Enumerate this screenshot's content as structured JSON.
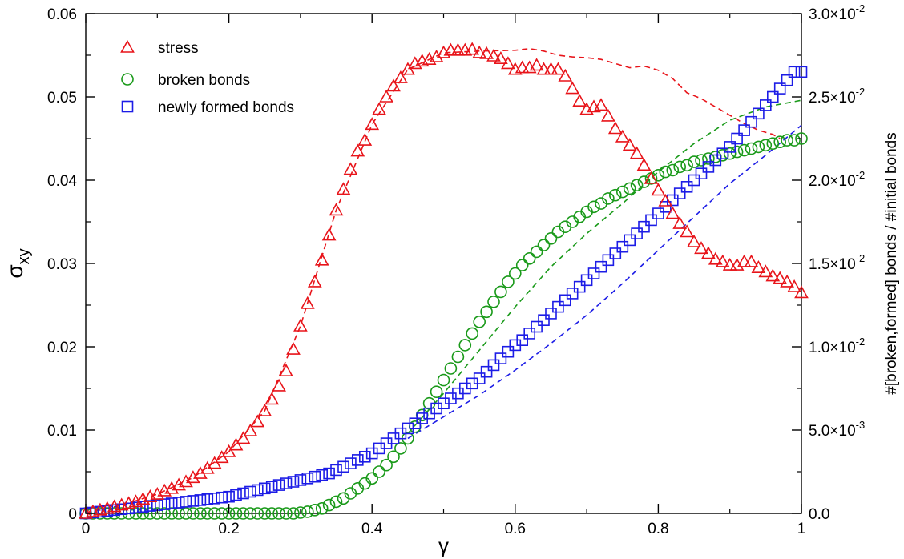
{
  "chart_data": {
    "type": "scatter",
    "x_axis": {
      "label": "γ",
      "range": [
        0,
        1
      ],
      "ticks": [
        0,
        0.2,
        0.4,
        0.6,
        0.8,
        1
      ],
      "tick_labels": [
        "0",
        "0.2",
        "0.4",
        "0.6",
        "0.8",
        "1"
      ]
    },
    "y_left": {
      "label_main": "σ",
      "label_sub": "xy",
      "range": [
        0,
        0.06
      ],
      "ticks": [
        0,
        0.01,
        0.02,
        0.03,
        0.04,
        0.05,
        0.06
      ],
      "tick_labels": [
        "0",
        "0.01",
        "0.02",
        "0.03",
        "0.04",
        "0.05",
        "0.06"
      ]
    },
    "y_right": {
      "label": "#[broken,formed] bonds / #initial bonds",
      "range": [
        0,
        0.03
      ],
      "ticks": [
        0,
        0.005,
        0.01,
        0.015,
        0.02,
        0.025,
        0.03
      ],
      "tick_labels": [
        {
          "mant": "0.0",
          "exp": ""
        },
        {
          "mant": "5.0×10",
          "exp": "-3"
        },
        {
          "mant": "1.0×10",
          "exp": "-2"
        },
        {
          "mant": "1.5×10",
          "exp": "-2"
        },
        {
          "mant": "2.0×10",
          "exp": "-2"
        },
        {
          "mant": "2.5×10",
          "exp": "-2"
        },
        {
          "mant": "3.0×10",
          "exp": "-2"
        }
      ]
    },
    "grid": false,
    "legend_position": "top-left",
    "series": [
      {
        "name": "stress",
        "axis": "left",
        "marker": "triangle",
        "color": "#e8141a",
        "x": [
          0,
          0.01,
          0.02,
          0.03,
          0.04,
          0.05,
          0.06,
          0.07,
          0.08,
          0.09,
          0.1,
          0.11,
          0.12,
          0.13,
          0.14,
          0.15,
          0.16,
          0.17,
          0.18,
          0.19,
          0.2,
          0.21,
          0.22,
          0.23,
          0.24,
          0.25,
          0.26,
          0.27,
          0.28,
          0.29,
          0.3,
          0.31,
          0.32,
          0.33,
          0.34,
          0.35,
          0.36,
          0.37,
          0.38,
          0.39,
          0.4,
          0.41,
          0.42,
          0.43,
          0.44,
          0.45,
          0.46,
          0.47,
          0.48,
          0.49,
          0.5,
          0.51,
          0.52,
          0.53,
          0.54,
          0.55,
          0.56,
          0.57,
          0.58,
          0.59,
          0.6,
          0.61,
          0.62,
          0.63,
          0.64,
          0.65,
          0.66,
          0.67,
          0.68,
          0.69,
          0.7,
          0.71,
          0.72,
          0.73,
          0.74,
          0.75,
          0.76,
          0.77,
          0.78,
          0.79,
          0.8,
          0.81,
          0.82,
          0.83,
          0.84,
          0.85,
          0.86,
          0.87,
          0.88,
          0.89,
          0.9,
          0.91,
          0.92,
          0.93,
          0.94,
          0.95,
          0.96,
          0.97,
          0.98,
          0.99,
          1.0
        ],
        "y": [
          0,
          0.0002,
          0.0004,
          0.0006,
          0.0008,
          0.001,
          0.0012,
          0.0014,
          0.0017,
          0.002,
          0.0023,
          0.0027,
          0.003,
          0.0034,
          0.0038,
          0.0043,
          0.0048,
          0.0054,
          0.006,
          0.0067,
          0.0074,
          0.0082,
          0.009,
          0.0099,
          0.011,
          0.0123,
          0.0137,
          0.0153,
          0.0171,
          0.0197,
          0.0225,
          0.0252,
          0.0278,
          0.0304,
          0.0334,
          0.0364,
          0.0389,
          0.0413,
          0.0435,
          0.0448,
          0.0467,
          0.0485,
          0.05,
          0.0513,
          0.0523,
          0.0533,
          0.054,
          0.0543,
          0.0545,
          0.0548,
          0.0553,
          0.0556,
          0.0556,
          0.0556,
          0.0557,
          0.0553,
          0.0552,
          0.0549,
          0.0546,
          0.054,
          0.0533,
          0.0535,
          0.0535,
          0.0538,
          0.0533,
          0.0533,
          0.0533,
          0.0525,
          0.051,
          0.0495,
          0.0485,
          0.0488,
          0.049,
          0.0477,
          0.0462,
          0.0452,
          0.0442,
          0.0432,
          0.0418,
          0.0402,
          0.0388,
          0.0375,
          0.036,
          0.0348,
          0.0338,
          0.0326,
          0.0318,
          0.0312,
          0.0305,
          0.0302,
          0.0298,
          0.0298,
          0.0302,
          0.0302,
          0.0295,
          0.029,
          0.0285,
          0.0282,
          0.0278,
          0.0272,
          0.0265
        ]
      },
      {
        "name": "broken bonds",
        "axis": "right",
        "marker": "circle",
        "color": "#1a9a1a",
        "x": [
          0,
          0.01,
          0.02,
          0.03,
          0.04,
          0.05,
          0.06,
          0.07,
          0.08,
          0.09,
          0.1,
          0.11,
          0.12,
          0.13,
          0.14,
          0.15,
          0.16,
          0.17,
          0.18,
          0.19,
          0.2,
          0.21,
          0.22,
          0.23,
          0.24,
          0.25,
          0.26,
          0.27,
          0.28,
          0.29,
          0.3,
          0.31,
          0.32,
          0.33,
          0.34,
          0.35,
          0.36,
          0.37,
          0.38,
          0.39,
          0.4,
          0.41,
          0.42,
          0.43,
          0.44,
          0.45,
          0.46,
          0.47,
          0.48,
          0.49,
          0.5,
          0.51,
          0.52,
          0.53,
          0.54,
          0.55,
          0.56,
          0.57,
          0.58,
          0.59,
          0.6,
          0.61,
          0.62,
          0.63,
          0.64,
          0.65,
          0.66,
          0.67,
          0.68,
          0.69,
          0.7,
          0.71,
          0.72,
          0.73,
          0.74,
          0.75,
          0.76,
          0.77,
          0.78,
          0.79,
          0.8,
          0.81,
          0.82,
          0.83,
          0.84,
          0.85,
          0.86,
          0.87,
          0.88,
          0.89,
          0.9,
          0.91,
          0.92,
          0.93,
          0.94,
          0.95,
          0.96,
          0.97,
          0.98,
          0.99,
          1.0
        ],
        "y": [
          0,
          0,
          0,
          0,
          0,
          0,
          0,
          0,
          0,
          0,
          0,
          0,
          0,
          0,
          0,
          0,
          0,
          0,
          0,
          0,
          0,
          0,
          0,
          0,
          0,
          0,
          0,
          0,
          0,
          0,
          5e-05,
          0.0001,
          0.0002,
          0.0003,
          0.0005,
          0.0007,
          0.0009,
          0.0012,
          0.0015,
          0.0018,
          0.0021,
          0.0025,
          0.0029,
          0.0034,
          0.0039,
          0.0045,
          0.0052,
          0.0059,
          0.0066,
          0.0073,
          0.008,
          0.0087,
          0.0094,
          0.0101,
          0.0108,
          0.0115,
          0.0121,
          0.0127,
          0.0133,
          0.0139,
          0.0144,
          0.0149,
          0.0153,
          0.0157,
          0.0161,
          0.0165,
          0.0169,
          0.0172,
          0.0175,
          0.0178,
          0.0181,
          0.0184,
          0.0186,
          0.0189,
          0.0191,
          0.0193,
          0.0195,
          0.0197,
          0.0199,
          0.0201,
          0.0203,
          0.0205,
          0.0206,
          0.0208,
          0.0209,
          0.0211,
          0.0212,
          0.0213,
          0.0214,
          0.0215,
          0.0216,
          0.0217,
          0.0218,
          0.0219,
          0.022,
          0.0221,
          0.0222,
          0.0223,
          0.0224,
          0.0224,
          0.0225
        ]
      },
      {
        "name": "newly formed bonds",
        "axis": "right",
        "marker": "square",
        "color": "#1c1ce6",
        "x": [
          0,
          0.01,
          0.02,
          0.03,
          0.04,
          0.05,
          0.06,
          0.07,
          0.08,
          0.09,
          0.1,
          0.11,
          0.12,
          0.13,
          0.14,
          0.15,
          0.16,
          0.17,
          0.18,
          0.19,
          0.2,
          0.21,
          0.22,
          0.23,
          0.24,
          0.25,
          0.26,
          0.27,
          0.28,
          0.29,
          0.3,
          0.31,
          0.32,
          0.33,
          0.34,
          0.35,
          0.36,
          0.37,
          0.38,
          0.39,
          0.4,
          0.41,
          0.42,
          0.43,
          0.44,
          0.45,
          0.46,
          0.47,
          0.48,
          0.49,
          0.5,
          0.51,
          0.52,
          0.53,
          0.54,
          0.55,
          0.56,
          0.57,
          0.58,
          0.59,
          0.6,
          0.61,
          0.62,
          0.63,
          0.64,
          0.65,
          0.66,
          0.67,
          0.68,
          0.69,
          0.7,
          0.71,
          0.72,
          0.73,
          0.74,
          0.75,
          0.76,
          0.77,
          0.78,
          0.79,
          0.8,
          0.81,
          0.82,
          0.83,
          0.84,
          0.85,
          0.86,
          0.87,
          0.88,
          0.89,
          0.9,
          0.91,
          0.92,
          0.93,
          0.94,
          0.95,
          0.96,
          0.97,
          0.98,
          0.99,
          1.0
        ],
        "y": [
          0,
          5e-05,
          0.0001,
          0.00015,
          0.0002,
          0.00025,
          0.0003,
          0.00035,
          0.0004,
          0.00045,
          0.0005,
          0.00055,
          0.0006,
          0.00065,
          0.0007,
          0.00075,
          0.0008,
          0.00085,
          0.0009,
          0.00095,
          0.001,
          0.0011,
          0.0012,
          0.0013,
          0.0014,
          0.0015,
          0.0016,
          0.0017,
          0.0018,
          0.0019,
          0.002,
          0.0021,
          0.0022,
          0.0023,
          0.0024,
          0.0026,
          0.0028,
          0.003,
          0.0032,
          0.0034,
          0.0036,
          0.0039,
          0.0042,
          0.0045,
          0.0048,
          0.0051,
          0.0054,
          0.0057,
          0.006,
          0.0063,
          0.0066,
          0.0069,
          0.0072,
          0.0075,
          0.0078,
          0.0081,
          0.0085,
          0.0089,
          0.0093,
          0.0097,
          0.0101,
          0.0104,
          0.0108,
          0.0112,
          0.0116,
          0.012,
          0.0124,
          0.0128,
          0.0132,
          0.0136,
          0.014,
          0.0144,
          0.0148,
          0.0152,
          0.0156,
          0.016,
          0.0164,
          0.0168,
          0.0172,
          0.0176,
          0.018,
          0.0184,
          0.0188,
          0.0192,
          0.0196,
          0.02,
          0.0204,
          0.0208,
          0.0212,
          0.0216,
          0.022,
          0.0225,
          0.023,
          0.0235,
          0.024,
          0.0245,
          0.025,
          0.0255,
          0.026,
          0.0265,
          0.0265
        ]
      }
    ],
    "dashed_lines": [
      {
        "color": "#e8141a",
        "axis": "left",
        "x": [
          0,
          0.05,
          0.1,
          0.15,
          0.2,
          0.25,
          0.3,
          0.35,
          0.4,
          0.45,
          0.5,
          0.55,
          0.6,
          0.62,
          0.64,
          0.66,
          0.68,
          0.7,
          0.72,
          0.74,
          0.76,
          0.78,
          0.8,
          0.82,
          0.84,
          0.86,
          0.88,
          0.9,
          0.92,
          0.94,
          0.96,
          0.97
        ],
        "y": [
          0,
          0.001,
          0.0023,
          0.0043,
          0.0074,
          0.0123,
          0.0225,
          0.0364,
          0.0467,
          0.0533,
          0.0553,
          0.0555,
          0.0556,
          0.0558,
          0.0555,
          0.055,
          0.0548,
          0.0547,
          0.0545,
          0.054,
          0.0535,
          0.0537,
          0.0532,
          0.0522,
          0.0505,
          0.0498,
          0.0488,
          0.0478,
          0.0468,
          0.046,
          0.0455,
          0.045
        ]
      },
      {
        "color": "#1a9a1a",
        "axis": "right",
        "x": [
          0.45,
          0.5,
          0.55,
          0.6,
          0.65,
          0.7,
          0.75,
          0.8,
          0.85,
          0.9,
          0.95,
          1.0
        ],
        "y": [
          0.0048,
          0.0072,
          0.0098,
          0.0124,
          0.0148,
          0.0168,
          0.0186,
          0.0205,
          0.0222,
          0.0236,
          0.0244,
          0.0248
        ]
      },
      {
        "color": "#1c1ce6",
        "axis": "right",
        "x": [
          0.45,
          0.5,
          0.55,
          0.6,
          0.65,
          0.7,
          0.75,
          0.8,
          0.85,
          0.9,
          0.95,
          1.0
        ],
        "y": [
          0.0045,
          0.0058,
          0.0071,
          0.0086,
          0.0102,
          0.0119,
          0.0138,
          0.0158,
          0.0178,
          0.0198,
          0.0215,
          0.0233
        ]
      }
    ]
  }
}
